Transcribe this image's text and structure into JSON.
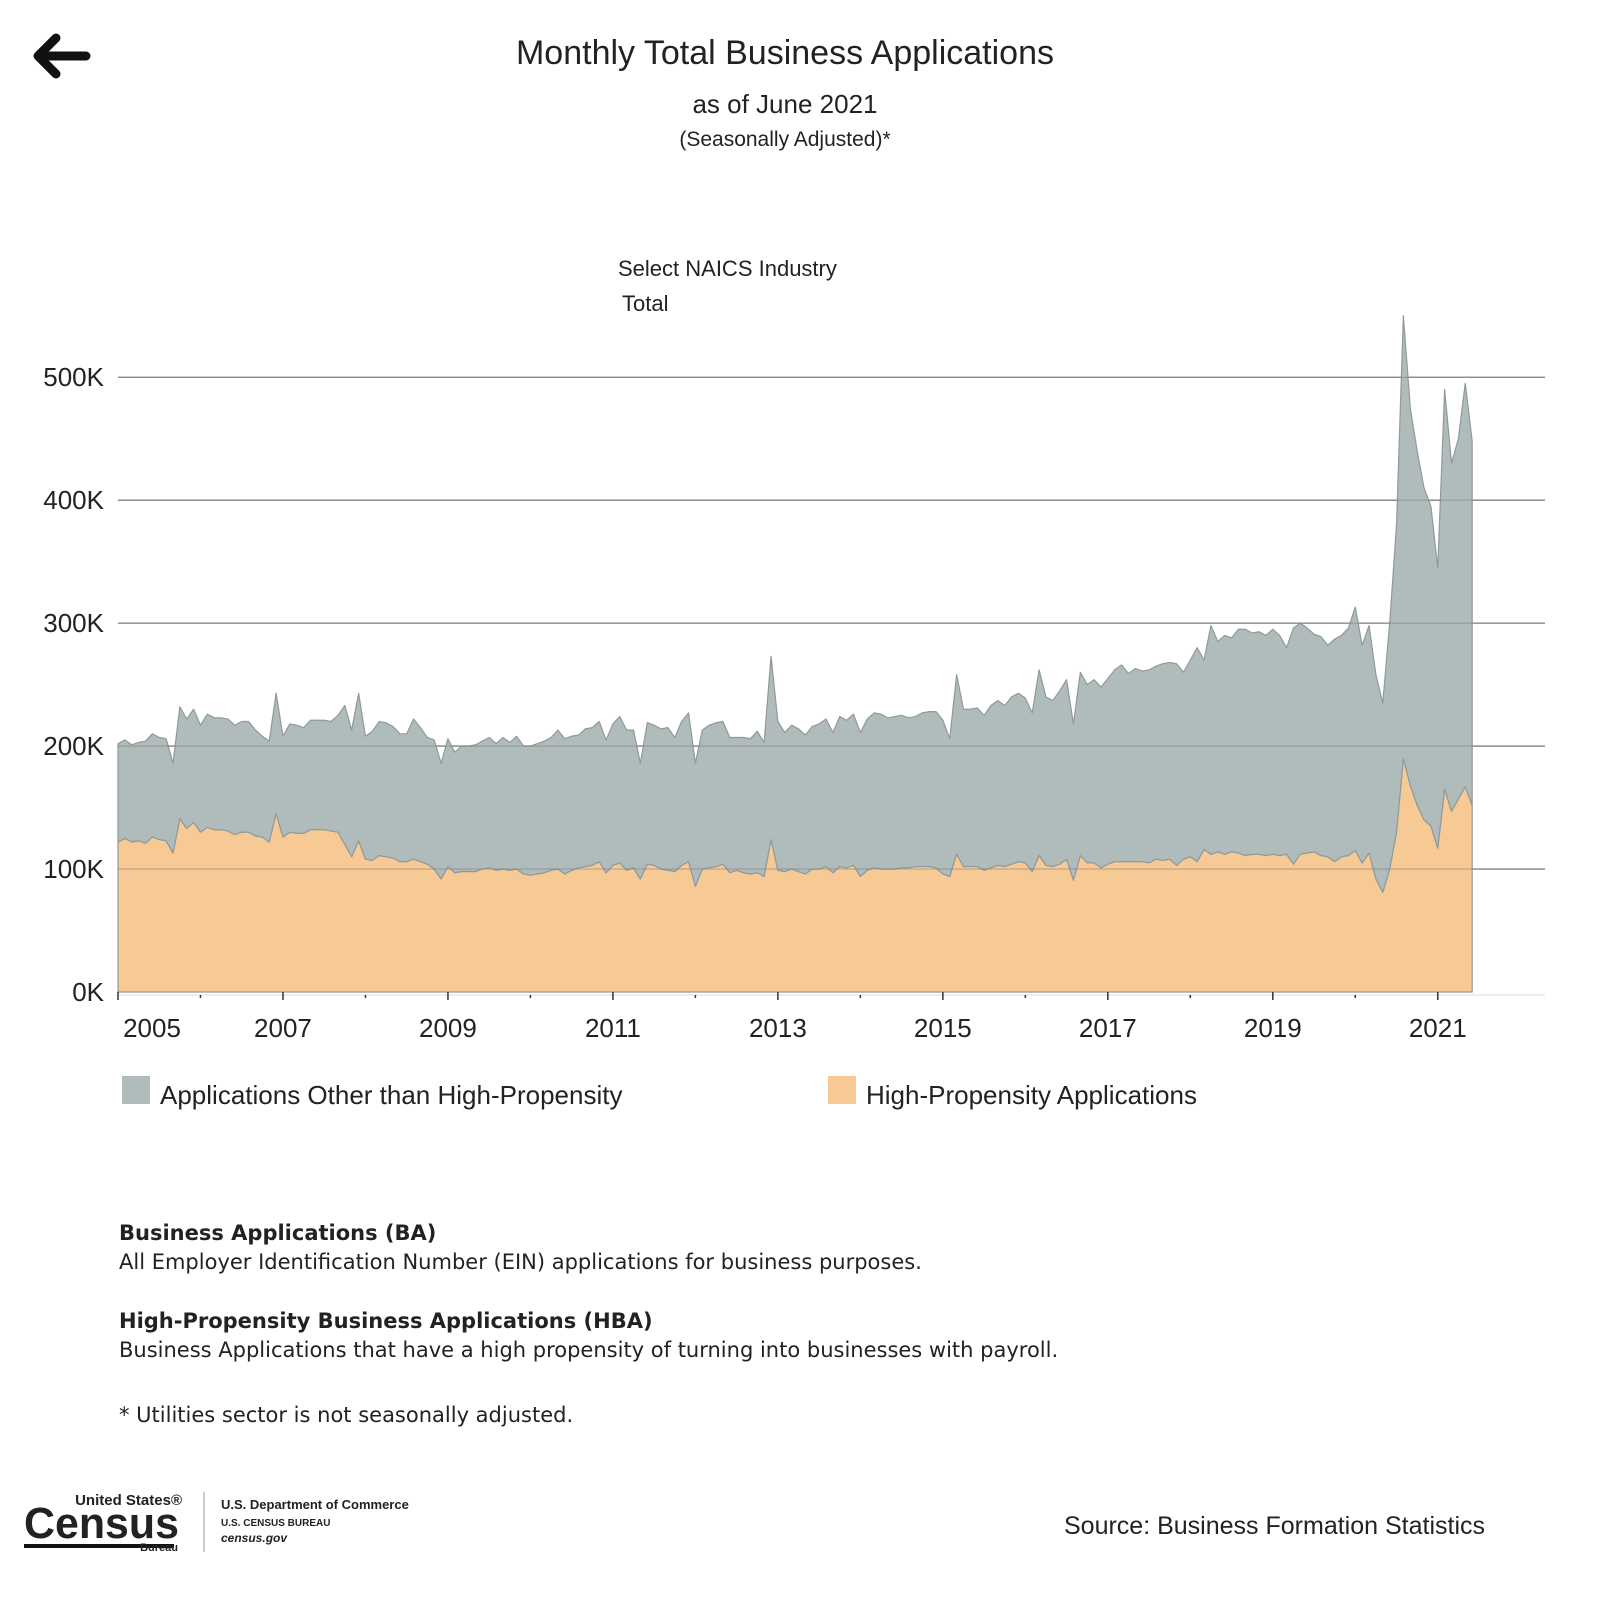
{
  "header": {
    "title": "Monthly Total Business Applications",
    "subtitle": "as of June 2021",
    "note": "(Seasonally Adjusted)*"
  },
  "filter": {
    "label": "Select NAICS Industry",
    "value": "Total"
  },
  "chart_data": {
    "type": "area",
    "stacked": true,
    "grid": true,
    "x": [
      2005,
      2005.083,
      2005.167,
      2005.25,
      2005.333,
      2005.417,
      2005.5,
      2005.583,
      2005.667,
      2005.75,
      2005.833,
      2005.917,
      2006,
      2006.083,
      2006.167,
      2006.25,
      2006.333,
      2006.417,
      2006.5,
      2006.583,
      2006.667,
      2006.75,
      2006.833,
      2006.917,
      2007,
      2007.083,
      2007.167,
      2007.25,
      2007.333,
      2007.417,
      2007.5,
      2007.583,
      2007.667,
      2007.75,
      2007.833,
      2007.917,
      2008,
      2008.083,
      2008.167,
      2008.25,
      2008.333,
      2008.417,
      2008.5,
      2008.583,
      2008.667,
      2008.75,
      2008.833,
      2008.917,
      2009,
      2009.083,
      2009.167,
      2009.25,
      2009.333,
      2009.417,
      2009.5,
      2009.583,
      2009.667,
      2009.75,
      2009.833,
      2009.917,
      2010,
      2010.083,
      2010.167,
      2010.25,
      2010.333,
      2010.417,
      2010.5,
      2010.583,
      2010.667,
      2010.75,
      2010.833,
      2010.917,
      2011,
      2011.083,
      2011.167,
      2011.25,
      2011.333,
      2011.417,
      2011.5,
      2011.583,
      2011.667,
      2011.75,
      2011.833,
      2011.917,
      2012,
      2012.083,
      2012.167,
      2012.25,
      2012.333,
      2012.417,
      2012.5,
      2012.583,
      2012.667,
      2012.75,
      2012.833,
      2012.917,
      2013,
      2013.083,
      2013.167,
      2013.25,
      2013.333,
      2013.417,
      2013.5,
      2013.583,
      2013.667,
      2013.75,
      2013.833,
      2013.917,
      2014,
      2014.083,
      2014.167,
      2014.25,
      2014.333,
      2014.417,
      2014.5,
      2014.583,
      2014.667,
      2014.75,
      2014.833,
      2014.917,
      2015,
      2015.083,
      2015.167,
      2015.25,
      2015.333,
      2015.417,
      2015.5,
      2015.583,
      2015.667,
      2015.75,
      2015.833,
      2015.917,
      2016,
      2016.083,
      2016.167,
      2016.25,
      2016.333,
      2016.417,
      2016.5,
      2016.583,
      2016.667,
      2016.75,
      2016.833,
      2016.917,
      2017,
      2017.083,
      2017.167,
      2017.25,
      2017.333,
      2017.417,
      2017.5,
      2017.583,
      2017.667,
      2017.75,
      2017.833,
      2017.917,
      2018,
      2018.083,
      2018.167,
      2018.25,
      2018.333,
      2018.417,
      2018.5,
      2018.583,
      2018.667,
      2018.75,
      2018.833,
      2018.917,
      2019,
      2019.083,
      2019.167,
      2019.25,
      2019.333,
      2019.417,
      2019.5,
      2019.583,
      2019.667,
      2019.75,
      2019.833,
      2019.917,
      2020,
      2020.083,
      2020.167,
      2020.25,
      2020.333,
      2020.417,
      2020.5,
      2020.583,
      2020.667,
      2020.75,
      2020.833,
      2020.917,
      2021,
      2021.083,
      2021.167,
      2021.25,
      2021.333,
      2021.417
    ],
    "series": [
      {
        "name": "Applications Other than High-Propensity",
        "color": "#b0bbbb",
        "values": [
          80000,
          80000,
          79000,
          80000,
          83000,
          84000,
          83000,
          83000,
          73000,
          91000,
          89000,
          92000,
          87000,
          92000,
          91000,
          91000,
          91000,
          89000,
          90000,
          90000,
          86000,
          82000,
          82000,
          98000,
          82000,
          88000,
          88000,
          86000,
          89000,
          89000,
          89000,
          89000,
          95000,
          113000,
          103000,
          120000,
          100000,
          105000,
          109000,
          109000,
          107000,
          104000,
          104000,
          114000,
          109000,
          103000,
          105000,
          94000,
          104000,
          98000,
          102000,
          102000,
          103000,
          104000,
          106000,
          103000,
          107000,
          104000,
          108000,
          104000,
          105000,
          106000,
          107000,
          108000,
          113000,
          110000,
          109000,
          108000,
          112000,
          112000,
          114000,
          108000,
          115000,
          119000,
          114000,
          112000,
          94000,
          115000,
          114000,
          114000,
          116000,
          109000,
          117000,
          121000,
          100000,
          113000,
          116000,
          117000,
          116000,
          110000,
          108000,
          110000,
          110000,
          115000,
          109000,
          149000,
          121000,
          113000,
          117000,
          116000,
          113000,
          116000,
          118000,
          120000,
          114000,
          122000,
          120000,
          123000,
          117000,
          123000,
          126000,
          126000,
          123000,
          124000,
          124000,
          122000,
          122000,
          125000,
          126000,
          127000,
          125000,
          112000,
          146000,
          128000,
          128000,
          129000,
          126000,
          132000,
          134000,
          131000,
          136000,
          137000,
          134000,
          129000,
          151000,
          137000,
          135000,
          141000,
          146000,
          127000,
          149000,
          145000,
          149000,
          147000,
          151000,
          156000,
          160000,
          153000,
          157000,
          155000,
          157000,
          157000,
          160000,
          160000,
          164000,
          152000,
          160000,
          174000,
          154000,
          186000,
          171000,
          178000,
          174000,
          182000,
          184000,
          180000,
          181000,
          179000,
          183000,
          179000,
          168000,
          192000,
          188000,
          183000,
          177000,
          178000,
          172000,
          181000,
          180000,
          185000,
          198000,
          177000,
          185000,
          166000,
          154000,
          200000,
          250000,
          360000,
          307000,
          288000,
          270000,
          260000,
          228000,
          325000,
          283000,
          293000,
          328000,
          296000
        ]
      },
      {
        "name": "High-Propensity Applications",
        "color": "#f7c994",
        "values": [
          122000,
          125000,
          122000,
          123000,
          121000,
          126000,
          124000,
          123000,
          113000,
          141000,
          133000,
          138000,
          130000,
          134000,
          132000,
          132000,
          131000,
          128000,
          130000,
          130000,
          127000,
          126000,
          122000,
          145000,
          126000,
          130000,
          129000,
          129000,
          132000,
          132000,
          132000,
          131000,
          130000,
          120000,
          110000,
          123000,
          108000,
          107000,
          111000,
          110000,
          109000,
          106000,
          106000,
          108000,
          106000,
          104000,
          100000,
          92000,
          102000,
          97000,
          98000,
          98000,
          98000,
          100000,
          101000,
          99000,
          100000,
          99000,
          100000,
          96000,
          95000,
          96000,
          97000,
          99000,
          100000,
          96000,
          99000,
          101000,
          102000,
          103000,
          106000,
          97000,
          103000,
          105000,
          99000,
          101000,
          92000,
          104000,
          103000,
          100000,
          99000,
          98000,
          103000,
          106000,
          86000,
          100000,
          101000,
          102000,
          104000,
          97000,
          99000,
          97000,
          96000,
          97000,
          94000,
          124000,
          99000,
          98000,
          100000,
          98000,
          96000,
          100000,
          100000,
          102000,
          97000,
          102000,
          101000,
          103000,
          94000,
          99000,
          101000,
          100000,
          100000,
          100000,
          101000,
          101000,
          102000,
          102000,
          102000,
          101000,
          96000,
          94000,
          112000,
          102000,
          102000,
          102000,
          99000,
          101000,
          103000,
          102000,
          104000,
          106000,
          105000,
          98000,
          111000,
          103000,
          102000,
          104000,
          108000,
          91000,
          111000,
          105000,
          105000,
          101000,
          104000,
          106000,
          106000,
          106000,
          106000,
          106000,
          105000,
          108000,
          107000,
          108000,
          103000,
          108000,
          110000,
          106000,
          116000,
          112000,
          114000,
          112000,
          114000,
          113000,
          111000,
          112000,
          112000,
          111000,
          112000,
          111000,
          112000,
          104000,
          112000,
          113000,
          114000,
          111000,
          110000,
          106000,
          110000,
          111000,
          115000,
          105000,
          113000,
          92000,
          81000,
          100000,
          130000,
          190000,
          168000,
          152000,
          140000,
          135000,
          117000,
          165000,
          147000,
          157000,
          167000,
          152000
        ]
      }
    ],
    "xlim": [
      2005,
      2022.3
    ],
    "xticks": [
      2005,
      2007,
      2009,
      2011,
      2013,
      2015,
      2017,
      2019,
      2021
    ],
    "ylim": [
      0,
      575000
    ],
    "yticks": [
      {
        "value": 0,
        "label": "0K"
      },
      {
        "value": 100000,
        "label": "100K"
      },
      {
        "value": 200000,
        "label": "200K"
      },
      {
        "value": 300000,
        "label": "300K"
      },
      {
        "value": 400000,
        "label": "400K"
      },
      {
        "value": 500000,
        "label": "500K"
      }
    ]
  },
  "notes": [
    {
      "heading": "Business Applications (BA)",
      "text": "All Employer Identification Number (EIN) applications for business purposes."
    },
    {
      "heading": "High-Propensity Business Applications (HBA)",
      "text": "Business Applications that have a high propensity of turning into businesses with payroll."
    }
  ],
  "footnote": "* Utilities sector is not seasonally adjusted.",
  "footer": {
    "logo_top": "United States®",
    "logo_main": "Census",
    "logo_bottom": "Bureau",
    "dept": "U.S. Department of Commerce",
    "bureau": "U.S. CENSUS BUREAU",
    "site": "census.gov",
    "source": "Source: Business Formation Statistics"
  }
}
